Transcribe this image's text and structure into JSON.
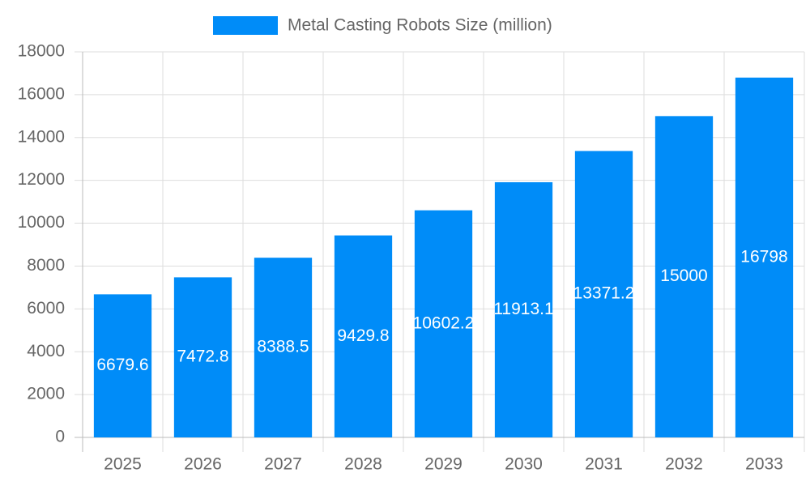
{
  "chart_data": {
    "type": "bar",
    "categories": [
      "2025",
      "2026",
      "2027",
      "2028",
      "2029",
      "2030",
      "2031",
      "2032",
      "2033"
    ],
    "series": [
      {
        "name": "Metal Casting Robots Size (million)",
        "color": "#008cf8",
        "values": [
          6679.6,
          7472.8,
          8388.5,
          9429.8,
          10602.2,
          11913.1,
          13371.2,
          15000,
          16798
        ]
      }
    ],
    "ylim": [
      0,
      18000
    ],
    "yticks": [
      0,
      2000,
      4000,
      6000,
      8000,
      10000,
      12000,
      14000,
      16000,
      18000
    ],
    "grid": true,
    "legend": "top"
  }
}
